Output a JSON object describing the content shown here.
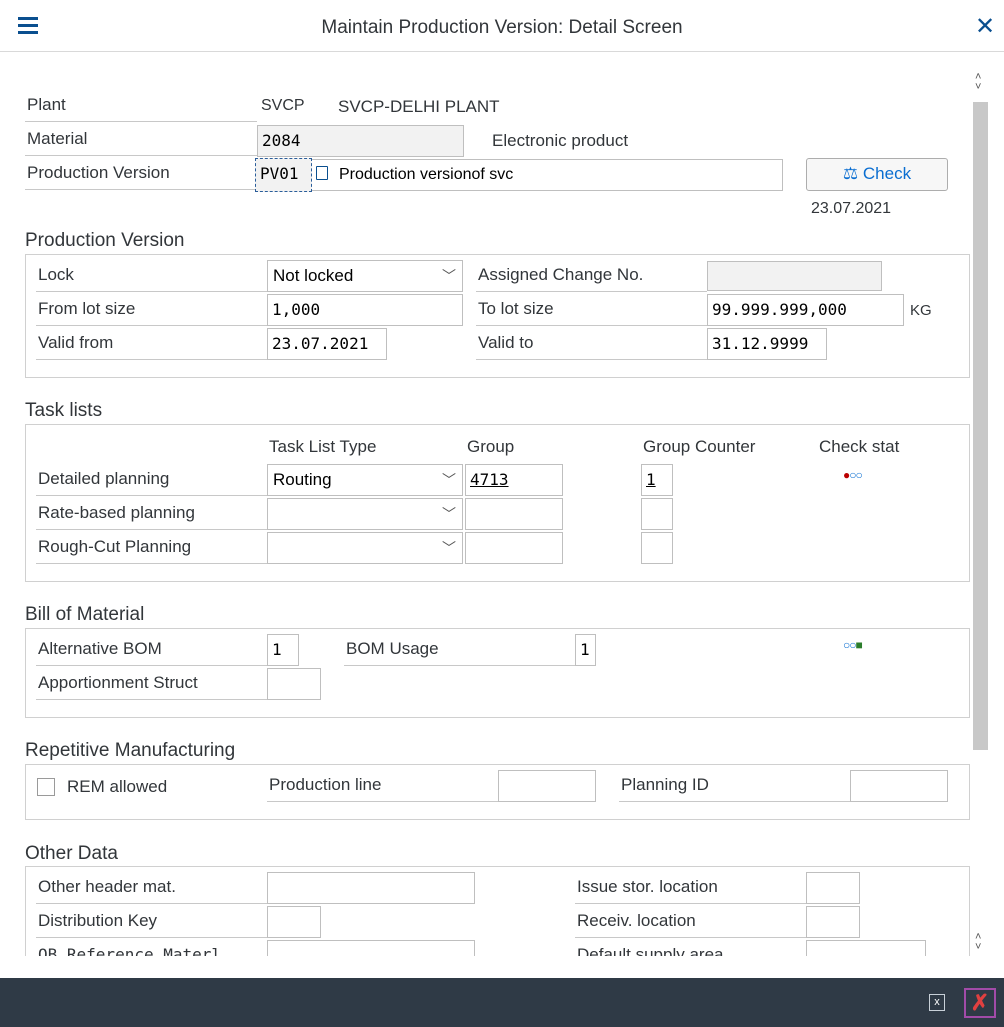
{
  "header": {
    "title": "Maintain Production Version: Detail Screen",
    "menu_icon": "hamburger-icon",
    "close_icon": "close-icon"
  },
  "top": {
    "plant_label": "Plant",
    "plant": "SVCP",
    "plant_name": "SVCP-DELHI PLANT",
    "material_label": "Material",
    "material": "2084",
    "material_desc": "Electronic product",
    "pv_label": "Production Version",
    "pv": "PV01",
    "pv_desc": "Production versionof svc",
    "check_label": "Check",
    "check_date": "23.07.2021"
  },
  "production_version": {
    "title": "Production Version",
    "lock_label": "Lock",
    "lock": "Not locked",
    "acn_label": "Assigned Change No.",
    "acn": "",
    "from_lot_label": "From lot size",
    "from_lot": "1,000",
    "to_lot_label": "To lot size",
    "to_lot": "99.999.999,000",
    "unit": "KG",
    "valid_from_label": "Valid from",
    "valid_from": "23.07.2021",
    "valid_to_label": "Valid to",
    "valid_to": "31.12.9999"
  },
  "task_lists": {
    "title": "Task lists",
    "col_type": "Task List Type",
    "col_group": "Group",
    "col_counter": "Group Counter",
    "col_check": "Check stat",
    "rows": [
      {
        "label": "Detailed planning",
        "type": "Routing",
        "group": "4713",
        "counter": "1",
        "status": "red-circle,empty-circle,empty-circle"
      },
      {
        "label": "Rate-based planning",
        "type": "",
        "group": "",
        "counter": ""
      },
      {
        "label": "Rough-Cut Planning",
        "type": "",
        "group": "",
        "counter": ""
      }
    ]
  },
  "bom": {
    "title": "Bill of Material",
    "alt_label": "Alternative BOM",
    "alt": "1",
    "usage_label": "BOM Usage",
    "usage": "1",
    "appor_label": "Apportionment Struct",
    "appor": "",
    "status": "empty-circle,empty-circle,green-square",
    "status_colors": {
      "red": "#bb0000",
      "green": "#2b7d2b",
      "empty": "#0a6ed1"
    }
  },
  "rem": {
    "title": "Repetitive Manufacturing",
    "rem_label": "REM allowed",
    "rem_checked": false,
    "line_label": "Production line",
    "line": "",
    "pid_label": "Planning ID",
    "pid": ""
  },
  "other": {
    "title": "Other Data",
    "ohm_label": "Other header mat.",
    "dist_label": "Distribution Key",
    "ob_label": "OB Reference Materl",
    "issue_label": "Issue stor. location",
    "recv_label": "Receiv. location",
    "supply_label": "Default supply area"
  },
  "footer": {
    "exit_icon": "exit-icon",
    "cancel_icon": "cancel-icon"
  }
}
